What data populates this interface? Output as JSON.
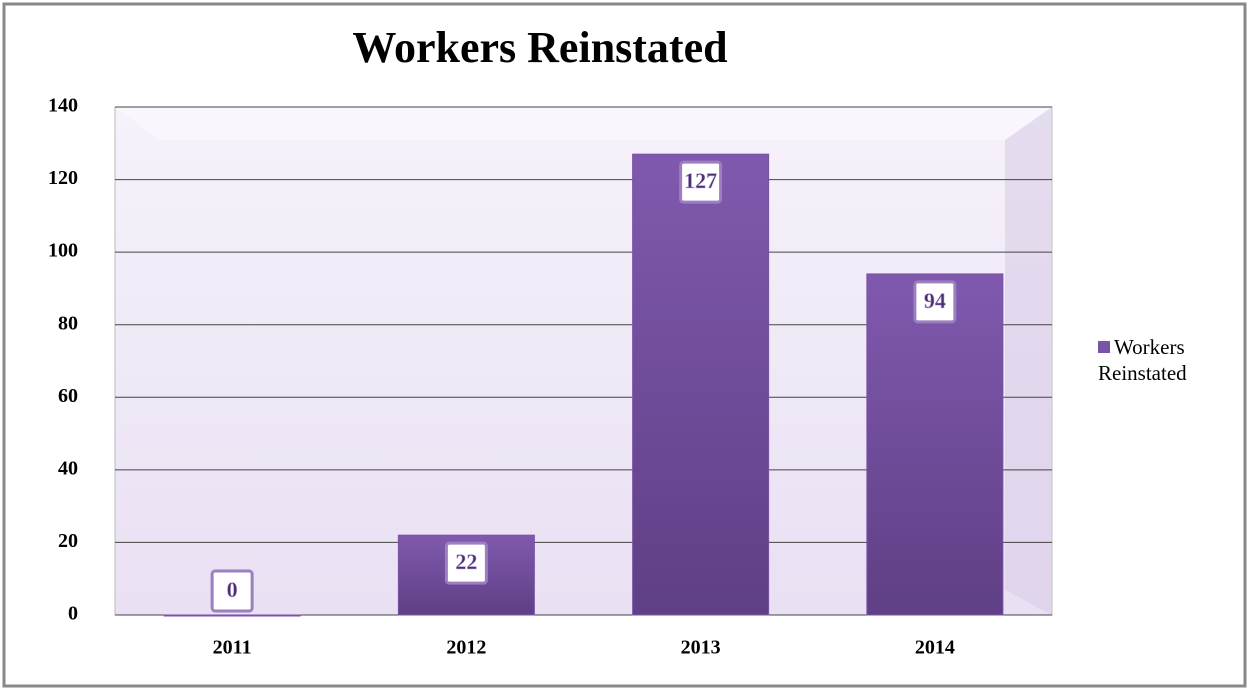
{
  "chart_data": {
    "type": "bar",
    "title": "Workers Reinstated",
    "categories": [
      "2011",
      "2012",
      "2013",
      "2014"
    ],
    "series": [
      {
        "name": "Workers Reinstated",
        "color": "#7a52a6",
        "values": [
          0,
          22,
          127,
          94
        ]
      }
    ],
    "ylim": [
      0,
      140
    ],
    "yticks": [
      0,
      20,
      40,
      60,
      80,
      100,
      120,
      140
    ],
    "grid": true,
    "legend": "right"
  }
}
